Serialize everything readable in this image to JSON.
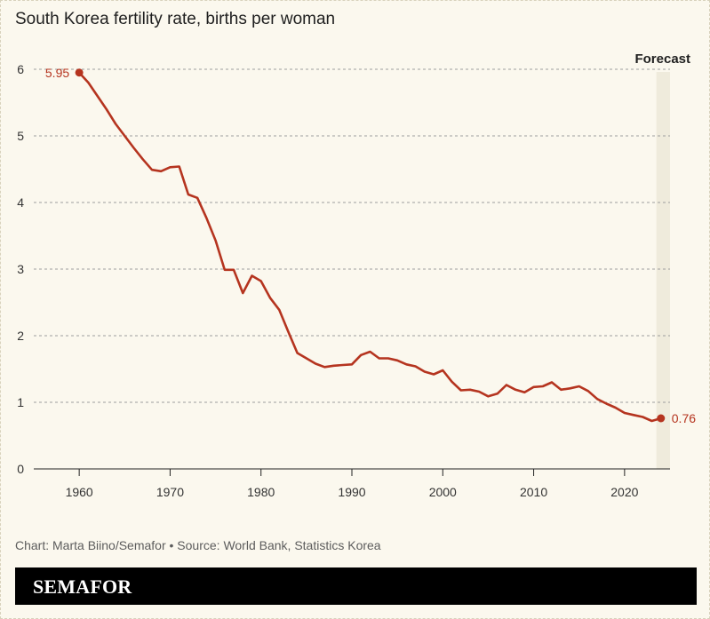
{
  "chart_data": {
    "type": "line",
    "title": "South Korea fertility rate, births per woman",
    "xlabel": "",
    "ylabel": "",
    "xlim": [
      1955,
      2025
    ],
    "ylim": [
      0,
      6
    ],
    "x_ticks": [
      1960,
      1970,
      1980,
      1990,
      2000,
      2010,
      2020
    ],
    "y_ticks": [
      0,
      1,
      2,
      3,
      4,
      5,
      6
    ],
    "grid": "horizontal dashed",
    "forecast": {
      "label": "Forecast",
      "from": 2023.5,
      "to": 2025
    },
    "series": [
      {
        "color": "#b5341f",
        "x": [
          1960,
          1961,
          1962,
          1963,
          1964,
          1965,
          1966,
          1967,
          1968,
          1969,
          1970,
          1971,
          1972,
          1973,
          1974,
          1975,
          1976,
          1977,
          1978,
          1979,
          1980,
          1981,
          1982,
          1983,
          1984,
          1985,
          1986,
          1987,
          1988,
          1989,
          1990,
          1991,
          1992,
          1993,
          1994,
          1995,
          1996,
          1997,
          1998,
          1999,
          2000,
          2001,
          2002,
          2003,
          2004,
          2005,
          2006,
          2007,
          2008,
          2009,
          2010,
          2011,
          2012,
          2013,
          2014,
          2015,
          2016,
          2017,
          2018,
          2019,
          2020,
          2021,
          2022,
          2023,
          2024
        ],
        "y": [
          5.95,
          5.8,
          5.6,
          5.4,
          5.18,
          5.0,
          4.82,
          4.65,
          4.49,
          4.47,
          4.53,
          4.54,
          4.12,
          4.07,
          3.77,
          3.43,
          2.99,
          2.99,
          2.64,
          2.9,
          2.82,
          2.57,
          2.39,
          2.06,
          1.74,
          1.66,
          1.58,
          1.53,
          1.55,
          1.56,
          1.57,
          1.71,
          1.76,
          1.66,
          1.66,
          1.63,
          1.57,
          1.54,
          1.46,
          1.42,
          1.48,
          1.31,
          1.18,
          1.19,
          1.16,
          1.09,
          1.13,
          1.26,
          1.19,
          1.15,
          1.23,
          1.24,
          1.3,
          1.19,
          1.21,
          1.24,
          1.17,
          1.05,
          0.98,
          0.92,
          0.84,
          0.81,
          0.78,
          0.72,
          0.76
        ]
      }
    ],
    "annotations": [
      {
        "label": "5.95",
        "x": 1960,
        "y": 5.95,
        "side": "left"
      },
      {
        "label": "0.76",
        "x": 2024,
        "y": 0.76,
        "side": "right"
      }
    ]
  },
  "footer": {
    "credit": "Chart: Marta Biino/Semafor • Source: World Bank, Statistics Korea",
    "brand": "SEMAFOR"
  },
  "colors": {
    "background": "#fbf8ee",
    "line": "#b5341f",
    "forecast_band": "#efebdc",
    "grid": "#9e9e9e"
  }
}
